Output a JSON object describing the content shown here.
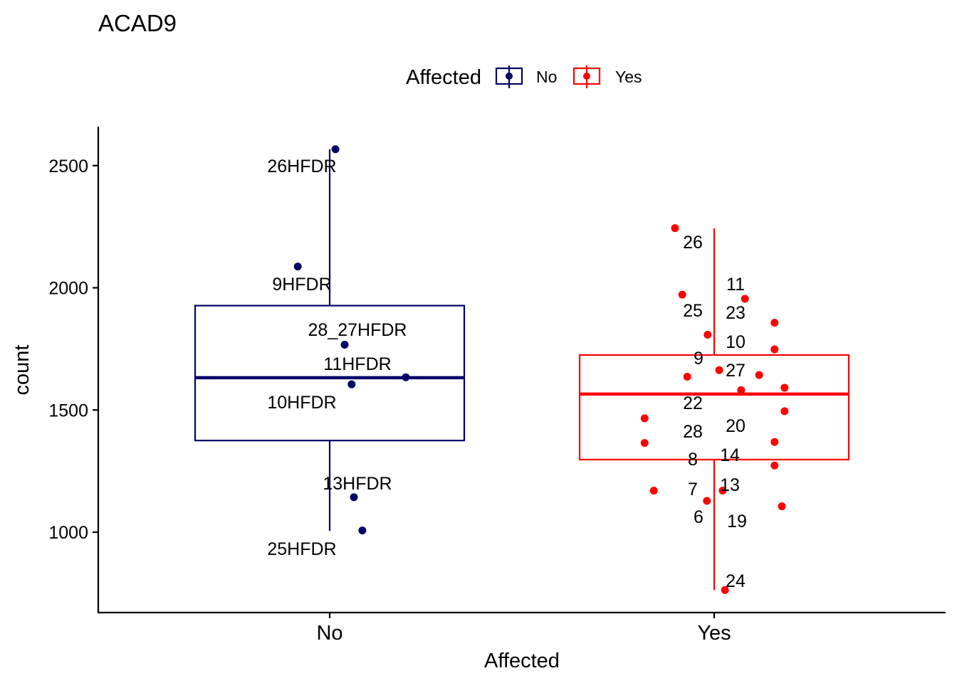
{
  "chart_data": {
    "type": "boxplot",
    "title": "ACAD9",
    "xlabel": "Affected",
    "ylabel": "count",
    "ylim": [
      700,
      2650
    ],
    "y_ticks": [
      1000,
      1500,
      2000,
      2500
    ],
    "categories": [
      "No",
      "Yes"
    ],
    "legend": {
      "title": "Affected",
      "position": "top",
      "entries": [
        {
          "label": "No",
          "color": "#000066"
        },
        {
          "label": "Yes",
          "color": "#ff0000"
        }
      ]
    },
    "colors": {
      "No": "#000066",
      "Yes": "#ff0000"
    },
    "boxes": [
      {
        "group": "No",
        "lower_whisker": 1005,
        "q1": 1375,
        "median": 1632,
        "q3": 1927,
        "upper_whisker": 2567
      },
      {
        "group": "Yes",
        "lower_whisker": 763,
        "q1": 1297,
        "median": 1565,
        "q3": 1725,
        "upper_whisker": 2243
      }
    ],
    "points": [
      {
        "group": "No",
        "jitter": 0.015,
        "y": 2567,
        "label": "26HFDR"
      },
      {
        "group": "No",
        "jitter": -0.083,
        "y": 2087,
        "label": "9HFDR"
      },
      {
        "group": "No",
        "jitter": 0.039,
        "y": 1767,
        "label": "28_27HFDR"
      },
      {
        "group": "No",
        "jitter": 0.198,
        "y": 1634,
        "label": "11HFDR"
      },
      {
        "group": "No",
        "jitter": 0.057,
        "y": 1605,
        "label": "10HFDR"
      },
      {
        "group": "No",
        "jitter": 0.063,
        "y": 1143,
        "label": "13HFDR"
      },
      {
        "group": "No",
        "jitter": 0.085,
        "y": 1007,
        "label": "25HFDR"
      },
      {
        "group": "Yes",
        "jitter": -0.102,
        "y": 2244,
        "label": "26"
      },
      {
        "group": "Yes",
        "jitter": -0.083,
        "y": 1972,
        "label": "25"
      },
      {
        "group": "Yes",
        "jitter": 0.08,
        "y": 1955,
        "label": "11"
      },
      {
        "group": "Yes",
        "jitter": 0.157,
        "y": 1857,
        "label": "23"
      },
      {
        "group": "Yes",
        "jitter": -0.017,
        "y": 1808,
        "label": "10"
      },
      {
        "group": "Yes",
        "jitter": 0.157,
        "y": 1748,
        "label": "9"
      },
      {
        "group": "Yes",
        "jitter": 0.013,
        "y": 1663,
        "label": "27"
      },
      {
        "group": "Yes",
        "jitter": -0.07,
        "y": 1636,
        "label": "22"
      },
      {
        "group": "Yes",
        "jitter": 0.117,
        "y": 1643,
        "label": "20"
      },
      {
        "group": "Yes",
        "jitter": 0.183,
        "y": 1591,
        "label": "28"
      },
      {
        "group": "Yes",
        "jitter": 0.07,
        "y": 1581,
        "label": "14"
      },
      {
        "group": "Yes",
        "jitter": 0.183,
        "y": 1495,
        "label": "8"
      },
      {
        "group": "Yes",
        "jitter": -0.181,
        "y": 1466,
        "label": "13"
      },
      {
        "group": "Yes",
        "jitter": -0.181,
        "y": 1365,
        "label": "7"
      },
      {
        "group": "Yes",
        "jitter": 0.157,
        "y": 1369,
        "label": "6"
      },
      {
        "group": "Yes",
        "jitter": 0.157,
        "y": 1273,
        "label": "19"
      },
      {
        "group": "Yes",
        "jitter": -0.157,
        "y": 1170,
        "label": "24"
      },
      {
        "group": "Yes",
        "jitter": 0.022,
        "y": 1170,
        "label": ""
      },
      {
        "group": "Yes",
        "jitter": -0.019,
        "y": 1128,
        "label": ""
      },
      {
        "group": "Yes",
        "jitter": 0.176,
        "y": 1106,
        "label": ""
      },
      {
        "group": "Yes",
        "jitter": 0.028,
        "y": 763,
        "label": ""
      }
    ]
  }
}
